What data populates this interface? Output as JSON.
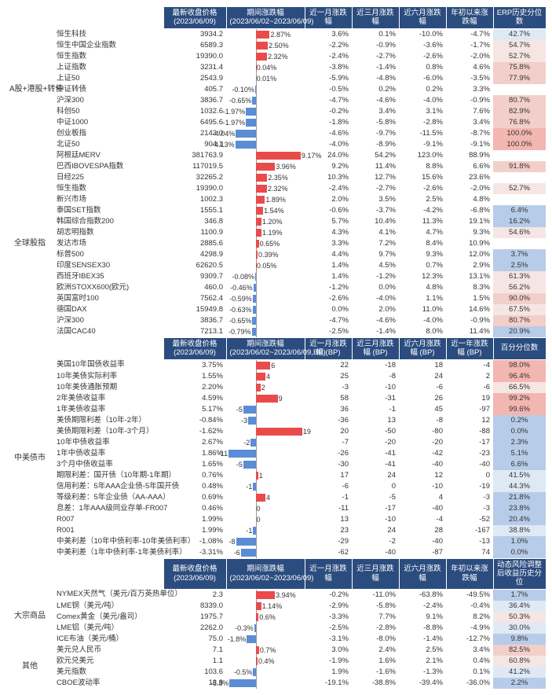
{
  "colors": {
    "header_bg": "#2b4c7e",
    "header_fg": "#ffffff",
    "bar_pos": "#e94b4b",
    "bar_neg": "#5b8dd6",
    "erp_high": "#f4b6b0",
    "erp_mid": "#f5e6e4",
    "erp_low": "#dfe9f5",
    "erp_verylow": "#b7cce8"
  },
  "sections": [
    {
      "headers": [
        "",
        "",
        "最新收盘价格 (2023/06/09)",
        "期间涨跌幅 (2023/06/02~2023/06/09)",
        "近一月涨跌幅",
        "近三月涨跌幅",
        "近六月涨跌幅",
        "年初以来涨跌幅",
        "ERP历史分位数"
      ],
      "bar_range": [
        -6,
        10
      ],
      "erp_label": "erp",
      "groups": [
        {
          "category": "A股+港股+转债",
          "rows": [
            {
              "name": "恒生科技",
              "price": "3934.2",
              "bar": 2.87,
              "bar_txt": "2.87%",
              "c1": "3.6%",
              "c2": "0.1%",
              "c3": "-10.0%",
              "c4": "-4.7%",
              "erp": 42.7
            },
            {
              "name": "恒生中国企业指数",
              "price": "6589.3",
              "bar": 2.5,
              "bar_txt": "2.50%",
              "c1": "-2.2%",
              "c2": "-0.9%",
              "c3": "-3.6%",
              "c4": "-1.7%",
              "erp": 54.7
            },
            {
              "name": "恒生指数",
              "price": "19390.0",
              "bar": 2.32,
              "bar_txt": "2.32%",
              "c1": "-2.4%",
              "c2": "-2.7%",
              "c3": "-2.6%",
              "c4": "-2.0%",
              "erp": 52.7
            },
            {
              "name": "上证指数",
              "price": "3231.4",
              "bar": 0.04,
              "bar_txt": "0.04%",
              "c1": "-3.8%",
              "c2": "-1.4%",
              "c3": "0.8%",
              "c4": "4.6%",
              "erp": 75.8
            },
            {
              "name": "上证50",
              "price": "2543.9",
              "bar": 0.01,
              "bar_txt": "0.01%",
              "c1": "-5.9%",
              "c2": "-4.8%",
              "c3": "-6.0%",
              "c4": "-3.5%",
              "erp": 77.9
            },
            {
              "name": "中证转债",
              "price": "405.7",
              "bar": -0.1,
              "bar_txt": "-0.10%",
              "c1": "-0.5%",
              "c2": "0.2%",
              "c3": "0.2%",
              "c4": "3.3%",
              "erp": null
            },
            {
              "name": "沪深300",
              "price": "3836.7",
              "bar": -0.65,
              "bar_txt": "-0.65%",
              "c1": "-4.7%",
              "c2": "-4.6%",
              "c3": "-4.0%",
              "c4": "-0.9%",
              "erp": 80.7
            },
            {
              "name": "科创50",
              "price": "1032.6",
              "bar": -1.97,
              "bar_txt": "-1.97%",
              "c1": "-0.2%",
              "c2": "3.4%",
              "c3": "3.1%",
              "c4": "7.6%",
              "erp": 82.9
            },
            {
              "name": "中证1000",
              "price": "6495.6",
              "bar": -1.97,
              "bar_txt": "-1.97%",
              "c1": "-1.8%",
              "c2": "-5.8%",
              "c3": "-2.8%",
              "c4": "3.4%",
              "erp": 76.8
            },
            {
              "name": "创业板指",
              "price": "2143.0",
              "bar": -4.04,
              "bar_txt": "-4.04%",
              "c1": "-4.6%",
              "c2": "-9.7%",
              "c3": "-11.5%",
              "c4": "-8.7%",
              "erp": 100.0
            },
            {
              "name": "北证50",
              "price": "904.1",
              "bar": -4.13,
              "bar_txt": "-4.13%",
              "c1": "-4.0%",
              "c2": "-8.9%",
              "c3": "-9.1%",
              "c4": "-9.1%",
              "erp": 100.0
            }
          ]
        },
        {
          "category": "全球股指",
          "rows": [
            {
              "name": "阿根廷MERV",
              "price": "381763.9",
              "bar": 9.17,
              "bar_txt": "9.17%",
              "c1": "24.0%",
              "c2": "54.2%",
              "c3": "123.0%",
              "c4": "88.9%",
              "erp": null
            },
            {
              "name": "巴西IBOVESPA指数",
              "price": "117019.5",
              "bar": 3.96,
              "bar_txt": "3.96%",
              "c1": "9.2%",
              "c2": "11.4%",
              "c3": "8.8%",
              "c4": "6.6%",
              "erp": 91.8
            },
            {
              "name": "日经225",
              "price": "32265.2",
              "bar": 2.35,
              "bar_txt": "2.35%",
              "c1": "10.3%",
              "c2": "12.7%",
              "c3": "15.6%",
              "c4": "23.6%",
              "erp": null
            },
            {
              "name": "恒生指数",
              "price": "19390.0",
              "bar": 2.32,
              "bar_txt": "2.32%",
              "c1": "-2.4%",
              "c2": "-2.7%",
              "c3": "-2.6%",
              "c4": "-2.0%",
              "erp": 52.7
            },
            {
              "name": "新兴市场",
              "price": "1002.3",
              "bar": 1.89,
              "bar_txt": "1.89%",
              "c1": "2.0%",
              "c2": "3.5%",
              "c3": "2.5%",
              "c4": "4.8%",
              "erp": null
            },
            {
              "name": "泰国SET指数",
              "price": "1555.1",
              "bar": 1.54,
              "bar_txt": "1.54%",
              "c1": "-0.6%",
              "c2": "-3.7%",
              "c3": "-4.2%",
              "c4": "-6.8%",
              "erp": 6.4
            },
            {
              "name": "韩国综合指数200",
              "price": "346.8",
              "bar": 1.2,
              "bar_txt": "1.20%",
              "c1": "5.7%",
              "c2": "10.4%",
              "c3": "11.3%",
              "c4": "19.1%",
              "erp": 16.2
            },
            {
              "name": "胡志明指数",
              "price": "1100.9",
              "bar": 1.19,
              "bar_txt": "1.19%",
              "c1": "4.3%",
              "c2": "4.1%",
              "c3": "4.7%",
              "c4": "9.3%",
              "erp": 54.6
            },
            {
              "name": "发达市场",
              "price": "2885.6",
              "bar": 0.65,
              "bar_txt": "0.65%",
              "c1": "3.3%",
              "c2": "7.2%",
              "c3": "8.4%",
              "c4": "10.9%",
              "erp": null
            },
            {
              "name": "标普500",
              "price": "4298.9",
              "bar": 0.39,
              "bar_txt": "0.39%",
              "c1": "4.4%",
              "c2": "9.7%",
              "c3": "9.3%",
              "c4": "12.0%",
              "erp": 3.7
            },
            {
              "name": "印度SENSEX30",
              "price": "62620.5",
              "bar": 0.05,
              "bar_txt": "0.05%",
              "c1": "1.4%",
              "c2": "4.5%",
              "c3": "0.7%",
              "c4": "2.9%",
              "erp": 2.5
            },
            {
              "name": "西班牙IBEX35",
              "price": "9309.7",
              "bar": -0.08,
              "bar_txt": "-0.08%",
              "c1": "1.4%",
              "c2": "-1.2%",
              "c3": "12.3%",
              "c4": "13.1%",
              "erp": 61.3
            },
            {
              "name": "欧洲STOXX600(欧元)",
              "price": "460.0",
              "bar": -0.46,
              "bar_txt": "-0.46%",
              "c1": "-1.2%",
              "c2": "0.0%",
              "c3": "4.8%",
              "c4": "8.3%",
              "erp": 56.2
            },
            {
              "name": "英国富时100",
              "price": "7562.4",
              "bar": -0.59,
              "bar_txt": "-0.59%",
              "c1": "-2.6%",
              "c2": "-4.0%",
              "c3": "1.1%",
              "c4": "1.5%",
              "erp": 90.0
            },
            {
              "name": "德国DAX",
              "price": "15949.8",
              "bar": -0.63,
              "bar_txt": "-0.63%",
              "c1": "0.0%",
              "c2": "2.0%",
              "c3": "11.0%",
              "c4": "14.6%",
              "erp": 67.5
            },
            {
              "name": "沪深300",
              "price": "3836.7",
              "bar": -0.65,
              "bar_txt": "-0.65%",
              "c1": "-4.7%",
              "c2": "-4.6%",
              "c3": "-4.0%",
              "c4": "-0.9%",
              "erp": 80.7
            },
            {
              "name": "法国CAC40",
              "price": "7213.1",
              "bar": -0.79,
              "bar_txt": "-0.79%",
              "c1": "-2.5%",
              "c2": "-1.4%",
              "c3": "8.0%",
              "c4": "11.4%",
              "erp": 20.9
            }
          ]
        }
      ]
    },
    {
      "headers": [
        "",
        "",
        "最新收盘价格 (2023/06/09)",
        "期间涨跌幅 (2023/06/02~2023/06/09,BP)",
        "近一月涨跌幅 (BP)",
        "近三月涨跌幅 (BP)",
        "近六月涨跌幅 (BP)",
        "近一年涨跌幅 (BP)",
        "百分分位数"
      ],
      "bar_range": [
        -12,
        20
      ],
      "erp_label": "pct",
      "groups": [
        {
          "category": "中美债市",
          "rows": [
            {
              "name": "美国10年国债收益率",
              "price": "3.75%",
              "bar": 6,
              "bar_txt": "6",
              "c1": "22",
              "c2": "-18",
              "c3": "18",
              "c4": "-4",
              "erp": 98.0
            },
            {
              "name": "10年美债实际利率",
              "price": "1.55%",
              "bar": 4,
              "bar_txt": "4",
              "c1": "25",
              "c2": "-8",
              "c3": "24",
              "c4": "2",
              "erp": 96.4
            },
            {
              "name": "10年美债通胀预期",
              "price": "2.20%",
              "bar": 2,
              "bar_txt": "2",
              "c1": "-3",
              "c2": "-10",
              "c3": "-6",
              "c4": "-6",
              "erp": 66.5
            },
            {
              "name": "2年美债收益率",
              "price": "4.59%",
              "bar": 9,
              "bar_txt": "9",
              "c1": "58",
              "c2": "-31",
              "c3": "26",
              "c4": "19",
              "erp": 99.2
            },
            {
              "name": "1年美债收益率",
              "price": "5.17%",
              "bar": -5,
              "bar_txt": "-5",
              "c1": "36",
              "c2": "-1",
              "c3": "45",
              "c4": "-97",
              "erp": 99.6
            },
            {
              "name": "美债期限利差（10年-2年）",
              "price": "-0.84%",
              "bar": -3,
              "bar_txt": "-3",
              "c1": "-36",
              "c2": "13",
              "c3": "-8",
              "c4": "12",
              "erp": 0.2
            },
            {
              "name": "美债期限利差（10年-3个月）",
              "price": "-1.62%",
              "bar": 19,
              "bar_txt": "19",
              "c1": "20",
              "c2": "-50",
              "c3": "-80",
              "c4": "-88",
              "erp": 0.0
            },
            {
              "name": "10年中债收益率",
              "price": "2.67%",
              "bar": -2,
              "bar_txt": "-2",
              "c1": "-7",
              "c2": "-20",
              "c3": "-20",
              "c4": "-17",
              "erp": 2.3
            },
            {
              "name": "1年中债收益率",
              "price": "1.86%",
              "bar": -11,
              "bar_txt": "-11",
              "c1": "-26",
              "c2": "-41",
              "c3": "-42",
              "c4": "-23",
              "erp": 5.1
            },
            {
              "name": "3个月中债收益率",
              "price": "1.65%",
              "bar": -5,
              "bar_txt": "-5",
              "c1": "-30",
              "c2": "-41",
              "c3": "-40",
              "c4": "-40",
              "erp": 6.6
            },
            {
              "name": "期限利差：国开债（10年期-1年期）",
              "price": "0.76%",
              "bar": 1,
              "bar_txt": "1",
              "c1": "17",
              "c2": "24",
              "c3": "12",
              "c4": "0",
              "erp": 41.5
            },
            {
              "name": "信用利差：5年AAA企业债-5年国开债",
              "price": "0.48%",
              "bar": -1,
              "bar_txt": "-1",
              "c1": "-6",
              "c2": "0",
              "c3": "-10",
              "c4": "-19",
              "erp": 44.3
            },
            {
              "name": "等级利差：5年企业债（AA-AAA）",
              "price": "0.69%",
              "bar": 4,
              "bar_txt": "4",
              "c1": "-1",
              "c2": "-5",
              "c3": "4",
              "c4": "-3",
              "erp": 21.8
            },
            {
              "name": "息差：1年AAA级同业存单-FR007",
              "price": "0.46%",
              "bar": 0,
              "bar_txt": "0",
              "c1": "-11",
              "c2": "-17",
              "c3": "-40",
              "c4": "-3",
              "erp": 23.8
            },
            {
              "name": "R007",
              "price": "1.99%",
              "bar": 0,
              "bar_txt": "0",
              "c1": "13",
              "c2": "-10",
              "c3": "-4",
              "c4": "-52",
              "erp": 20.4
            },
            {
              "name": "R001",
              "price": "1.99%",
              "bar": -1,
              "bar_txt": "-1",
              "c1": "23",
              "c2": "24",
              "c3": "28",
              "c4": "-167",
              "erp": 38.8
            },
            {
              "name": "中美利差（10年中债利率-10年美债利率）",
              "price": "-1.08%",
              "bar": -8,
              "bar_txt": "-8",
              "c1": "-29",
              "c2": "-2",
              "c3": "-40",
              "c4": "-13",
              "erp": 1.0
            },
            {
              "name": "中美利差（1年中债利率-1年美债利率）",
              "price": "-3.31%",
              "bar": -6,
              "bar_txt": "-6",
              "c1": "-62",
              "c2": "-40",
              "c3": "-87",
              "c4": "74",
              "erp": 0.0
            }
          ]
        }
      ]
    },
    {
      "headers": [
        "",
        "",
        "最新收盘价格 (2023/06/09)",
        "期间涨跌幅 (2023/06/02~2023/06/09)",
        "近一月涨跌幅",
        "近三月涨跌幅",
        "近六月涨跌幅",
        "年初以来涨跌幅",
        "动态风险调整后收益历史分位"
      ],
      "bar_range": [
        -6,
        10
      ],
      "erp_label": "pct",
      "groups": [
        {
          "category": "大宗商品",
          "rows": [
            {
              "name": "NYMEX天然气（美元/百万英热单位）",
              "price": "2.3",
              "bar": 3.94,
              "bar_txt": "3.94%",
              "c1": "-0.2%",
              "c2": "-11.0%",
              "c3": "-63.8%",
              "c4": "-49.5%",
              "erp": 1.7
            },
            {
              "name": "LME铜（美元/吨）",
              "price": "8339.0",
              "bar": 1.14,
              "bar_txt": "1.14%",
              "c1": "-2.9%",
              "c2": "-5.8%",
              "c3": "-2.4%",
              "c4": "-0.4%",
              "erp": 36.4
            },
            {
              "name": "Comex黄金（美元/盎司）",
              "price": "1975.7",
              "bar": 0.6,
              "bar_txt": "0.6%",
              "c1": "-3.3%",
              "c2": "7.7%",
              "c3": "9.1%",
              "c4": "8.2%",
              "erp": 50.3
            },
            {
              "name": "LME铝（美元/吨）",
              "price": "2262.0",
              "bar": -0.3,
              "bar_txt": "-0.3%",
              "c1": "-2.5%",
              "c2": "-2.8%",
              "c3": "-8.8%",
              "c4": "-4.9%",
              "erp": 30.0
            },
            {
              "name": "ICE布油（美元/桶）",
              "price": "75.0",
              "bar": -1.8,
              "bar_txt": "-1.8%",
              "c1": "-3.1%",
              "c2": "-8.0%",
              "c3": "-1.4%",
              "c4": "-12.7%",
              "erp": 9.8
            }
          ]
        },
        {
          "category": "其他",
          "rows": [
            {
              "name": "美元兑人民币",
              "price": "7.1",
              "bar": 0.7,
              "bar_txt": "0.7%",
              "c1": "3.0%",
              "c2": "2.4%",
              "c3": "2.5%",
              "c4": "3.4%",
              "erp": 82.5
            },
            {
              "name": "欧元兑美元",
              "price": "1.1",
              "bar": 0.4,
              "bar_txt": "0.4%",
              "c1": "-1.9%",
              "c2": "1.6%",
              "c3": "2.1%",
              "c4": "0.4%",
              "erp": 60.8
            },
            {
              "name": "美元指数",
              "price": "103.6",
              "bar": -0.5,
              "bar_txt": "-0.5%",
              "c1": "1.9%",
              "c2": "-1.6%",
              "c3": "-1.3%",
              "c4": "0.1%",
              "erp": 41.2
            },
            {
              "name": "CBOE波动率",
              "price": "13.8",
              "bar": -5.3,
              "bar_txt": "-5.3%",
              "c1": "-19.1%",
              "c2": "-38.8%",
              "c3": "-39.4%",
              "c4": "-36.0%",
              "erp": 2.2
            }
          ]
        }
      ]
    }
  ],
  "col_widths": [
    "60px",
    "140px",
    "80px",
    "100px",
    "60px",
    "60px",
    "60px",
    "60px",
    "67px"
  ]
}
